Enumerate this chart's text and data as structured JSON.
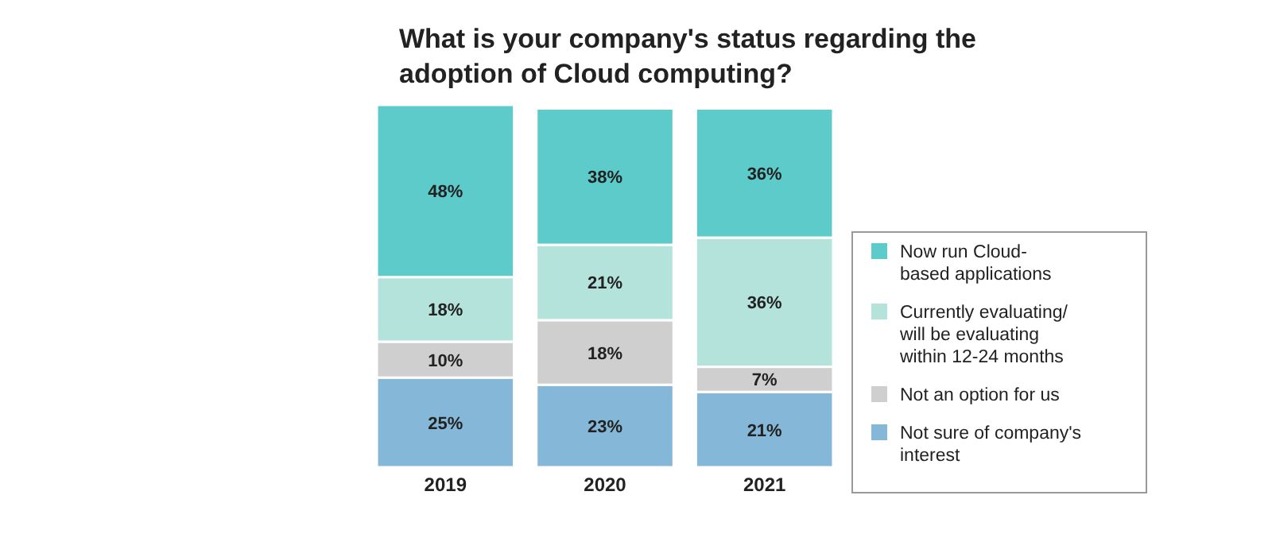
{
  "chart_data": {
    "type": "bar",
    "title": "What is your company's status regarding the adoption of Cloud computing?",
    "categories": [
      "2019",
      "2020",
      "2021"
    ],
    "stacked": true,
    "ylim": [
      0,
      101
    ],
    "tick_labels": "x",
    "legend": "right",
    "series": [
      {
        "name": "Not sure of company's interest",
        "color": "#85b8d8",
        "values": [
          25,
          23,
          21
        ],
        "value_labels": [
          "25%",
          "23%",
          "21%"
        ]
      },
      {
        "name": "Not an option for us",
        "color": "#cfcfcf",
        "values": [
          10,
          18,
          7
        ],
        "value_labels": [
          "10%",
          "18%",
          "7%"
        ]
      },
      {
        "name": "Currently evaluating/ will be evaluating within 12-24 months",
        "color": "#b3e3da",
        "values": [
          18,
          21,
          36
        ],
        "value_labels": [
          "18%",
          "21%",
          "36%"
        ]
      },
      {
        "name": "Now run Cloud-based applications",
        "color": "#5ecbcb",
        "values": [
          48,
          38,
          36
        ],
        "value_labels": [
          "48%",
          "38%",
          "36%"
        ]
      }
    ]
  }
}
